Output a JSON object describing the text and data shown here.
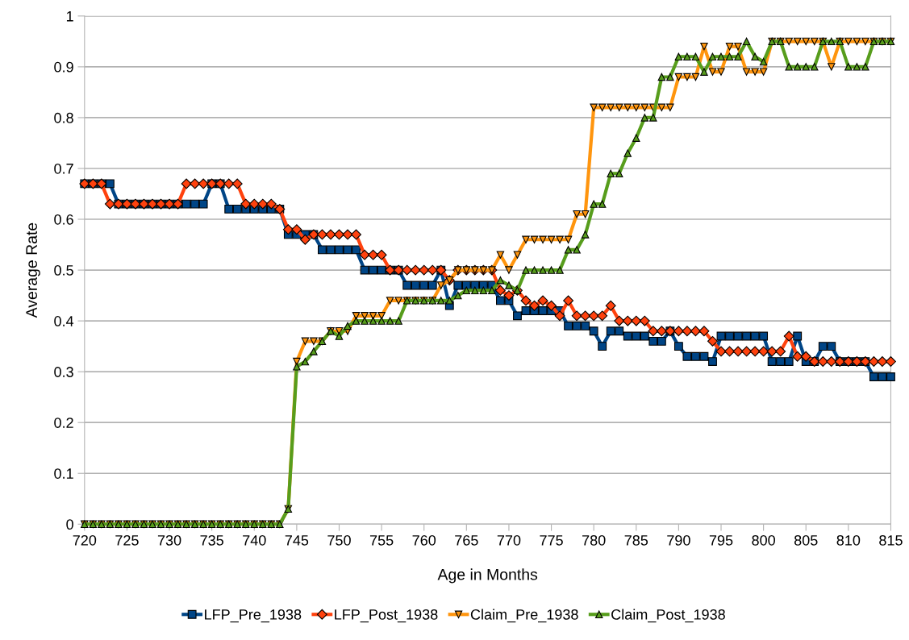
{
  "chart_data": {
    "type": "line",
    "xlabel": "Age in Months",
    "ylabel": "Average Rate",
    "x": [
      720,
      721,
      722,
      723,
      724,
      725,
      726,
      727,
      728,
      729,
      730,
      731,
      732,
      733,
      734,
      735,
      736,
      737,
      738,
      739,
      740,
      741,
      742,
      743,
      744,
      745,
      746,
      747,
      748,
      749,
      750,
      751,
      752,
      753,
      754,
      755,
      756,
      757,
      758,
      759,
      760,
      761,
      762,
      763,
      764,
      765,
      766,
      767,
      768,
      769,
      770,
      771,
      772,
      773,
      774,
      775,
      776,
      777,
      778,
      779,
      780,
      781,
      782,
      783,
      784,
      785,
      786,
      787,
      788,
      789,
      790,
      791,
      792,
      793,
      794,
      795,
      796,
      797,
      798,
      799,
      800,
      801,
      802,
      803,
      804,
      805,
      806,
      807,
      808,
      809,
      810,
      811,
      812,
      813,
      814,
      815
    ],
    "xlim": [
      720,
      815
    ],
    "xticks": [
      720,
      725,
      730,
      735,
      740,
      745,
      750,
      755,
      760,
      765,
      770,
      775,
      780,
      785,
      790,
      795,
      800,
      805,
      810,
      815
    ],
    "ylim": [
      0,
      1
    ],
    "yticks": [
      0,
      0.1,
      0.2,
      0.3,
      0.4,
      0.5,
      0.6,
      0.7,
      0.8,
      0.9,
      1
    ],
    "grid": "y",
    "legend": "bottom",
    "series": [
      {
        "name": "LFP_Pre_1938",
        "color": "#004586",
        "marker": "square",
        "values": [
          0.67,
          0.67,
          0.67,
          0.67,
          0.63,
          0.63,
          0.63,
          0.63,
          0.63,
          0.63,
          0.63,
          0.63,
          0.63,
          0.63,
          0.63,
          0.67,
          0.67,
          0.62,
          0.62,
          0.62,
          0.62,
          0.62,
          0.62,
          0.62,
          0.57,
          0.57,
          0.57,
          0.57,
          0.54,
          0.54,
          0.54,
          0.54,
          0.54,
          0.5,
          0.5,
          0.5,
          0.5,
          0.5,
          0.47,
          0.47,
          0.47,
          0.47,
          0.5,
          0.43,
          0.47,
          0.47,
          0.47,
          0.47,
          0.47,
          0.44,
          0.44,
          0.41,
          0.42,
          0.42,
          0.42,
          0.42,
          0.42,
          0.39,
          0.39,
          0.39,
          0.38,
          0.35,
          0.38,
          0.38,
          0.37,
          0.37,
          0.37,
          0.36,
          0.36,
          0.38,
          0.35,
          0.33,
          0.33,
          0.33,
          0.32,
          0.37,
          0.37,
          0.37,
          0.37,
          0.37,
          0.37,
          0.32,
          0.32,
          0.32,
          0.37,
          0.32,
          0.32,
          0.35,
          0.35,
          0.32,
          0.32,
          0.32,
          0.32,
          0.29,
          0.29,
          0.29
        ]
      },
      {
        "name": "LFP_Post_1938",
        "color": "#ff420e",
        "marker": "diamond",
        "values": [
          0.67,
          0.67,
          0.67,
          0.63,
          0.63,
          0.63,
          0.63,
          0.63,
          0.63,
          0.63,
          0.63,
          0.63,
          0.67,
          0.67,
          0.67,
          0.67,
          0.67,
          0.67,
          0.67,
          0.63,
          0.63,
          0.63,
          0.63,
          0.62,
          0.58,
          0.58,
          0.56,
          0.57,
          0.57,
          0.57,
          0.57,
          0.57,
          0.57,
          0.53,
          0.53,
          0.53,
          0.5,
          0.5,
          0.5,
          0.5,
          0.5,
          0.5,
          0.5,
          0.48,
          0.5,
          0.5,
          0.5,
          0.5,
          0.5,
          0.46,
          0.45,
          0.46,
          0.44,
          0.43,
          0.44,
          0.43,
          0.41,
          0.44,
          0.41,
          0.41,
          0.41,
          0.41,
          0.43,
          0.4,
          0.4,
          0.4,
          0.4,
          0.38,
          0.38,
          0.38,
          0.38,
          0.38,
          0.38,
          0.38,
          0.36,
          0.34,
          0.34,
          0.34,
          0.34,
          0.34,
          0.34,
          0.34,
          0.34,
          0.37,
          0.33,
          0.33,
          0.32,
          0.32,
          0.32,
          0.32,
          0.32,
          0.32,
          0.32,
          0.32,
          0.32,
          0.32
        ]
      },
      {
        "name": "Claim_Pre_1938",
        "color": "#ff950e",
        "marker": "triangle_down",
        "values": [
          0,
          0,
          0,
          0,
          0,
          0,
          0,
          0,
          0,
          0,
          0,
          0,
          0,
          0,
          0,
          0,
          0,
          0,
          0,
          0,
          0,
          0,
          0,
          0,
          0.03,
          0.32,
          0.36,
          0.36,
          0.36,
          0.38,
          0.38,
          0.38,
          0.41,
          0.41,
          0.41,
          0.41,
          0.44,
          0.44,
          0.44,
          0.44,
          0.44,
          0.44,
          0.47,
          0.48,
          0.5,
          0.5,
          0.5,
          0.5,
          0.5,
          0.53,
          0.5,
          0.53,
          0.56,
          0.56,
          0.56,
          0.56,
          0.56,
          0.56,
          0.61,
          0.61,
          0.82,
          0.82,
          0.82,
          0.82,
          0.82,
          0.82,
          0.82,
          0.82,
          0.82,
          0.82,
          0.88,
          0.88,
          0.88,
          0.94,
          0.89,
          0.89,
          0.94,
          0.94,
          0.89,
          0.89,
          0.89,
          0.95,
          0.95,
          0.95,
          0.95,
          0.95,
          0.95,
          0.95,
          0.9,
          0.95,
          0.95,
          0.95,
          0.95,
          0.95,
          0.95,
          0.95
        ]
      },
      {
        "name": "Claim_Post_1938",
        "color": "#579d1c",
        "marker": "triangle",
        "values": [
          0,
          0,
          0,
          0,
          0,
          0,
          0,
          0,
          0,
          0,
          0,
          0,
          0,
          0,
          0,
          0,
          0,
          0,
          0,
          0,
          0,
          0,
          0,
          0,
          0.03,
          0.31,
          0.32,
          0.34,
          0.36,
          0.38,
          0.37,
          0.39,
          0.4,
          0.4,
          0.4,
          0.4,
          0.4,
          0.4,
          0.44,
          0.44,
          0.44,
          0.44,
          0.44,
          0.44,
          0.45,
          0.46,
          0.46,
          0.46,
          0.46,
          0.48,
          0.47,
          0.46,
          0.5,
          0.5,
          0.5,
          0.5,
          0.5,
          0.54,
          0.54,
          0.57,
          0.63,
          0.63,
          0.69,
          0.69,
          0.73,
          0.76,
          0.8,
          0.8,
          0.88,
          0.88,
          0.92,
          0.92,
          0.92,
          0.89,
          0.92,
          0.92,
          0.92,
          0.92,
          0.95,
          0.92,
          0.91,
          0.95,
          0.95,
          0.9,
          0.9,
          0.9,
          0.9,
          0.95,
          0.95,
          0.95,
          0.9,
          0.9,
          0.9,
          0.95,
          0.95,
          0.95
        ]
      }
    ]
  }
}
